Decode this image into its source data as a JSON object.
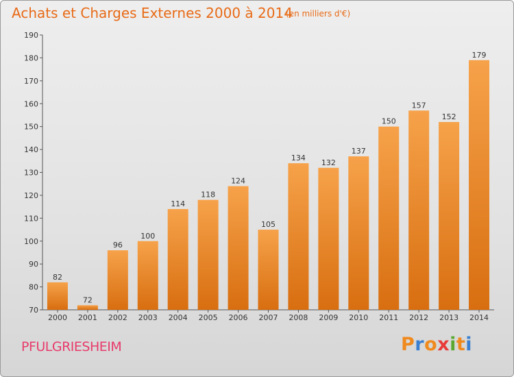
{
  "header": {
    "title": "Achats et Charges Externes 2000 à 2014",
    "subtitle": "(en milliers d'€)"
  },
  "footer": {
    "town": "PFULGRIESHEIM",
    "logo": {
      "text": "Proxiti",
      "letters": [
        "P",
        "r",
        "o",
        "x",
        "i",
        "t",
        "i"
      ],
      "colors": [
        "#f08a1e",
        "#3a7fd0",
        "#f08a1e",
        "#e83a3a",
        "#5aa832",
        "#f08a1e",
        "#3a7fd0"
      ]
    }
  },
  "colors": {
    "bar_top": "#f6a24a",
    "bar_bottom": "#d86e10",
    "accent": "#e86a16"
  },
  "chart_data": {
    "type": "bar",
    "categories": [
      "2000",
      "2001",
      "2002",
      "2003",
      "2004",
      "2005",
      "2006",
      "2007",
      "2008",
      "2009",
      "2010",
      "2011",
      "2012",
      "2013",
      "2014"
    ],
    "values": [
      82,
      72,
      96,
      100,
      114,
      118,
      124,
      105,
      134,
      132,
      137,
      150,
      157,
      152,
      179
    ],
    "title": "Achats et Charges Externes 2000 à 2014",
    "ylim": [
      70,
      190
    ],
    "yticks": [
      70,
      80,
      90,
      100,
      110,
      120,
      130,
      140,
      150,
      160,
      170,
      180,
      190
    ],
    "grid": false
  }
}
